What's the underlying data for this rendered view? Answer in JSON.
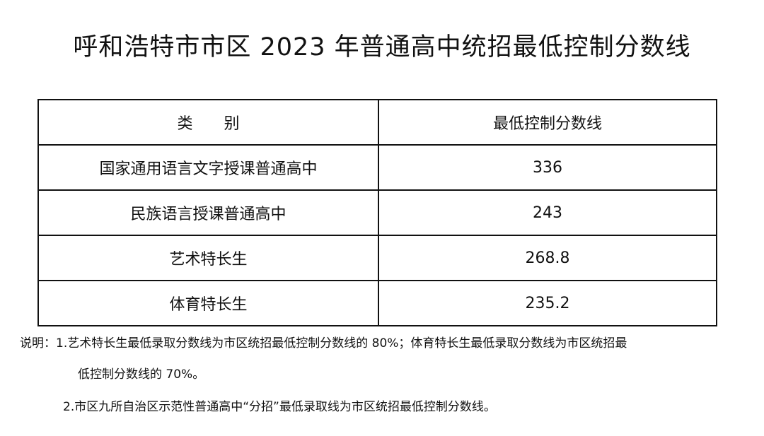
{
  "title": "呼和浩特市市区 2023 年普通高中统招最低控制分数线",
  "table": {
    "headers": [
      "类　　别",
      "最低控制分数线"
    ],
    "rows": [
      [
        "国家通用语言文字授课普通高中",
        "336"
      ],
      [
        "民族语言授课普通高中",
        "243"
      ],
      [
        "艺术特长生",
        "268.8"
      ],
      [
        "体育特长生",
        "235.2"
      ]
    ]
  },
  "notes": {
    "line1": "说明：1.艺术特长生最低录取分数线为市区统招最低控制分数线的 80%；体育特长生最低录取分数线为市区统招最",
    "line1_cont": "低控制分数线的 70%。",
    "line2": "2.市区九所自治区示范性普通高中“分招”最低录取线为市区统招最低控制分数线。"
  }
}
